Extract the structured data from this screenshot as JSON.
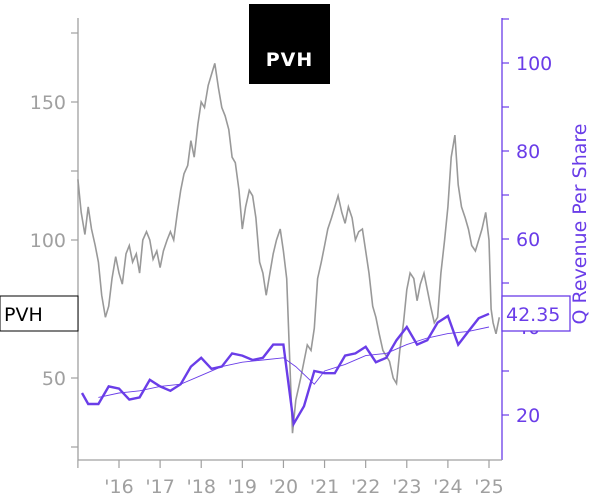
{
  "chart_data": {
    "type": "line",
    "logo_text": "PVH",
    "y_left": {
      "range": [
        20,
        175
      ],
      "ticks": [
        50,
        100,
        150
      ]
    },
    "y_right": {
      "label": "Q Revenue Per Share",
      "range": [
        10,
        110
      ],
      "ticks": [
        20,
        40,
        60,
        80,
        100
      ]
    },
    "x": {
      "range": [
        2015.0,
        2025.3
      ],
      "ticks": [
        2016,
        2017,
        2018,
        2019,
        2020,
        2021,
        2022,
        2023,
        2024,
        2025
      ],
      "tick_labels": [
        "'16",
        "'17",
        "'18",
        "'19",
        "'20",
        "'21",
        "'22",
        "'23",
        "'24",
        "'25"
      ]
    },
    "price_series": {
      "ticker": "PVH",
      "color": "#999999",
      "last_value_label": "PVH",
      "points": [
        [
          2015.0,
          122
        ],
        [
          2015.08,
          110
        ],
        [
          2015.17,
          102
        ],
        [
          2015.25,
          112
        ],
        [
          2015.33,
          104
        ],
        [
          2015.42,
          98
        ],
        [
          2015.5,
          92
        ],
        [
          2015.58,
          80
        ],
        [
          2015.67,
          72
        ],
        [
          2015.75,
          76
        ],
        [
          2015.83,
          86
        ],
        [
          2015.92,
          94
        ],
        [
          2016.0,
          88
        ],
        [
          2016.08,
          84
        ],
        [
          2016.17,
          95
        ],
        [
          2016.25,
          98
        ],
        [
          2016.33,
          92
        ],
        [
          2016.42,
          95
        ],
        [
          2016.5,
          88
        ],
        [
          2016.58,
          100
        ],
        [
          2016.67,
          103
        ],
        [
          2016.75,
          100
        ],
        [
          2016.83,
          93
        ],
        [
          2016.92,
          96
        ],
        [
          2017.0,
          90
        ],
        [
          2017.08,
          96
        ],
        [
          2017.17,
          100
        ],
        [
          2017.25,
          103
        ],
        [
          2017.33,
          100
        ],
        [
          2017.42,
          110
        ],
        [
          2017.5,
          118
        ],
        [
          2017.58,
          124
        ],
        [
          2017.67,
          127
        ],
        [
          2017.75,
          136
        ],
        [
          2017.83,
          130
        ],
        [
          2017.92,
          142
        ],
        [
          2018.0,
          150
        ],
        [
          2018.08,
          148
        ],
        [
          2018.17,
          156
        ],
        [
          2018.25,
          160
        ],
        [
          2018.33,
          164
        ],
        [
          2018.42,
          155
        ],
        [
          2018.5,
          148
        ],
        [
          2018.58,
          145
        ],
        [
          2018.67,
          140
        ],
        [
          2018.75,
          130
        ],
        [
          2018.83,
          128
        ],
        [
          2018.92,
          118
        ],
        [
          2019.0,
          104
        ],
        [
          2019.08,
          112
        ],
        [
          2019.17,
          118
        ],
        [
          2019.25,
          116
        ],
        [
          2019.33,
          108
        ],
        [
          2019.42,
          92
        ],
        [
          2019.5,
          88
        ],
        [
          2019.58,
          80
        ],
        [
          2019.67,
          88
        ],
        [
          2019.75,
          95
        ],
        [
          2019.83,
          100
        ],
        [
          2019.92,
          104
        ],
        [
          2020.0,
          96
        ],
        [
          2020.08,
          86
        ],
        [
          2020.17,
          50
        ],
        [
          2020.22,
          30
        ],
        [
          2020.3,
          42
        ],
        [
          2020.42,
          50
        ],
        [
          2020.5,
          56
        ],
        [
          2020.58,
          62
        ],
        [
          2020.67,
          60
        ],
        [
          2020.75,
          68
        ],
        [
          2020.83,
          86
        ],
        [
          2020.92,
          92
        ],
        [
          2021.0,
          98
        ],
        [
          2021.08,
          104
        ],
        [
          2021.17,
          108
        ],
        [
          2021.25,
          112
        ],
        [
          2021.33,
          116
        ],
        [
          2021.42,
          110
        ],
        [
          2021.5,
          106
        ],
        [
          2021.58,
          112
        ],
        [
          2021.67,
          108
        ],
        [
          2021.75,
          100
        ],
        [
          2021.83,
          103
        ],
        [
          2021.92,
          104
        ],
        [
          2022.0,
          96
        ],
        [
          2022.08,
          88
        ],
        [
          2022.17,
          76
        ],
        [
          2022.25,
          72
        ],
        [
          2022.33,
          66
        ],
        [
          2022.42,
          60
        ],
        [
          2022.5,
          58
        ],
        [
          2022.58,
          56
        ],
        [
          2022.67,
          50
        ],
        [
          2022.75,
          48
        ],
        [
          2022.83,
          60
        ],
        [
          2022.92,
          70
        ],
        [
          2023.0,
          82
        ],
        [
          2023.08,
          88
        ],
        [
          2023.17,
          86
        ],
        [
          2023.25,
          78
        ],
        [
          2023.33,
          84
        ],
        [
          2023.42,
          88
        ],
        [
          2023.5,
          82
        ],
        [
          2023.58,
          76
        ],
        [
          2023.67,
          70
        ],
        [
          2023.75,
          72
        ],
        [
          2023.83,
          88
        ],
        [
          2023.92,
          100
        ],
        [
          2024.0,
          112
        ],
        [
          2024.08,
          130
        ],
        [
          2024.17,
          138
        ],
        [
          2024.25,
          120
        ],
        [
          2024.33,
          112
        ],
        [
          2024.42,
          108
        ],
        [
          2024.5,
          104
        ],
        [
          2024.58,
          98
        ],
        [
          2024.67,
          96
        ],
        [
          2024.75,
          100
        ],
        [
          2024.83,
          104
        ],
        [
          2024.92,
          110
        ],
        [
          2025.0,
          100
        ],
        [
          2025.05,
          75
        ],
        [
          2025.1,
          70
        ],
        [
          2025.17,
          66
        ],
        [
          2025.25,
          72
        ]
      ]
    },
    "revenue_series": {
      "name": "Q Revenue Per Share",
      "color": "#6a3de8",
      "last_value_label": "42.35",
      "points": [
        [
          2015.1,
          25
        ],
        [
          2015.25,
          22.5
        ],
        [
          2015.5,
          22.5
        ],
        [
          2015.75,
          26.5
        ],
        [
          2016.0,
          26
        ],
        [
          2016.25,
          23.5
        ],
        [
          2016.5,
          24
        ],
        [
          2016.75,
          28
        ],
        [
          2017.0,
          26.5
        ],
        [
          2017.25,
          25.5
        ],
        [
          2017.5,
          27
        ],
        [
          2017.75,
          31
        ],
        [
          2018.0,
          33
        ],
        [
          2018.25,
          30.5
        ],
        [
          2018.5,
          31
        ],
        [
          2018.75,
          34
        ],
        [
          2019.0,
          33.5
        ],
        [
          2019.25,
          32.5
        ],
        [
          2019.5,
          33
        ],
        [
          2019.75,
          36
        ],
        [
          2020.0,
          36
        ],
        [
          2020.25,
          18
        ],
        [
          2020.5,
          22
        ],
        [
          2020.75,
          30
        ],
        [
          2021.0,
          29.5
        ],
        [
          2021.25,
          29.5
        ],
        [
          2021.5,
          33.5
        ],
        [
          2021.75,
          34
        ],
        [
          2022.0,
          35.5
        ],
        [
          2022.25,
          32
        ],
        [
          2022.5,
          33
        ],
        [
          2022.75,
          37
        ],
        [
          2023.0,
          40
        ],
        [
          2023.25,
          36
        ],
        [
          2023.5,
          37
        ],
        [
          2023.75,
          41
        ],
        [
          2024.0,
          42.5
        ],
        [
          2024.25,
          36
        ],
        [
          2024.5,
          39
        ],
        [
          2024.75,
          42
        ],
        [
          2025.0,
          43
        ]
      ]
    },
    "trend_series": {
      "color": "#6a3de8",
      "points": [
        [
          2015.5,
          24
        ],
        [
          2016.0,
          25
        ],
        [
          2016.5,
          25.5
        ],
        [
          2017.0,
          26.5
        ],
        [
          2017.5,
          27
        ],
        [
          2018.0,
          29
        ],
        [
          2018.5,
          31
        ],
        [
          2019.0,
          32
        ],
        [
          2019.5,
          32.5
        ],
        [
          2020.0,
          33
        ],
        [
          2020.3,
          31
        ],
        [
          2020.75,
          27
        ],
        [
          2021.0,
          30
        ],
        [
          2021.5,
          31.5
        ],
        [
          2022.0,
          33.5
        ],
        [
          2022.5,
          34
        ],
        [
          2023.0,
          36
        ],
        [
          2023.5,
          37.5
        ],
        [
          2024.0,
          38.5
        ],
        [
          2024.5,
          39
        ],
        [
          2025.0,
          40
        ]
      ]
    }
  }
}
